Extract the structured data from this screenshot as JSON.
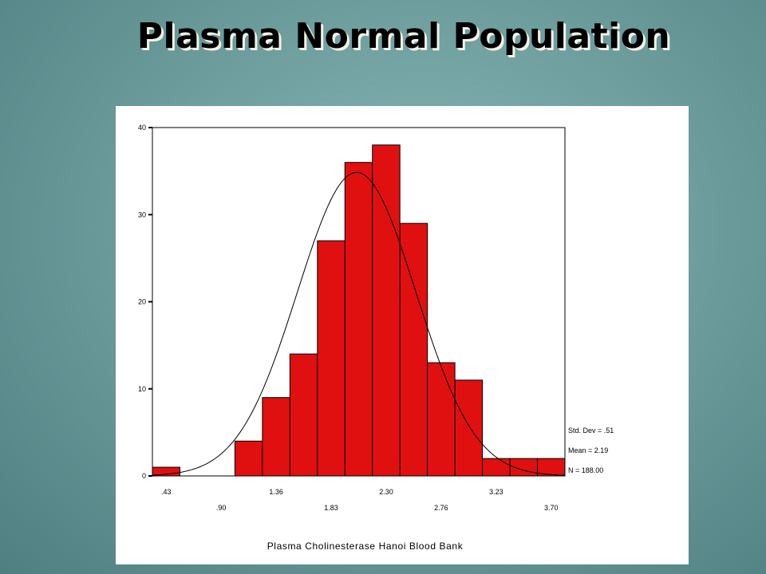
{
  "slide": {
    "title": "Plasma Normal Population"
  },
  "chart_data": {
    "type": "bar",
    "subtype": "histogram",
    "xlabel": "Plasma Cholinesterase Hanoi Blood Bank",
    "ylabel": "",
    "ylim": [
      0,
      40
    ],
    "y_ticks": [
      0,
      10,
      20,
      30,
      40
    ],
    "x_tick_labels_upper": [
      ".43",
      "1.36",
      "2.30",
      "3.23"
    ],
    "x_tick_labels_lower": [
      ".90",
      "1.83",
      "2.76",
      "3.70"
    ],
    "bins": [
      0.43,
      0.667,
      0.9,
      1.13,
      1.36,
      1.593,
      1.83,
      2.06,
      2.3,
      2.53,
      2.76,
      2.993,
      3.23,
      3.463,
      3.7
    ],
    "values": [
      1,
      0,
      0,
      4,
      9,
      14,
      27,
      36,
      38,
      29,
      13,
      11,
      2,
      2,
      2
    ],
    "normal_curve": {
      "mean": 2.19,
      "std_dev": 0.51,
      "n": 188
    },
    "stats_labels": [
      "Std. Dev = .51",
      "Mean = 2.19",
      "N = 188.00"
    ],
    "colors": {
      "bar_fill": "#e01010",
      "bar_stroke": "#000000",
      "curve": "#000000"
    }
  }
}
